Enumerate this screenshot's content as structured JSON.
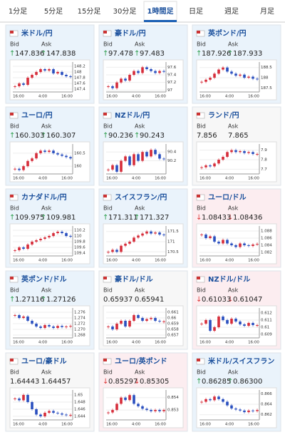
{
  "tabs": [
    "1分足",
    "5分足",
    "15分足",
    "30分足",
    "1時間足",
    "日足",
    "週足",
    "月足"
  ],
  "active_tab": 4,
  "bid_label": "Bid",
  "ask_label": "Ask",
  "xticks": [
    "16:00",
    "4:00",
    "16:00"
  ],
  "cells": [
    {
      "name": "米ドル/円",
      "bid": "147.836",
      "ask": "147.838",
      "direction": "up",
      "ylim": [
        147.3,
        148.3
      ],
      "yticks": [
        148.2,
        148,
        147.8,
        147.6,
        147.4
      ],
      "closes": [
        147.5,
        147.6,
        147.55,
        147.8,
        147.9,
        148.0,
        148.1,
        148.05,
        148.1,
        147.95,
        148.0,
        147.9,
        147.85,
        147.84
      ]
    },
    {
      "name": "豪ドル/円",
      "bid": "97.478",
      "ask": "97.483",
      "direction": "up",
      "ylim": [
        96.95,
        97.7
      ],
      "yticks": [
        97.6,
        97.4,
        97.2,
        97
      ],
      "closes": [
        97.1,
        97.05,
        97.2,
        97.3,
        97.25,
        97.4,
        97.5,
        97.45,
        97.6,
        97.55,
        97.5,
        97.45,
        97.5,
        97.48
      ]
    },
    {
      "name": "英ポンド/円",
      "bid": "187.926",
      "ask": "187.933",
      "direction": "up",
      "ylim": [
        187.3,
        188.7
      ],
      "yticks": [
        188.5,
        188,
        187.5
      ],
      "closes": [
        187.8,
        187.9,
        188.0,
        188.2,
        188.4,
        188.5,
        188.3,
        188.2,
        188.1,
        188.15,
        188.0,
        188.05,
        187.95,
        187.93
      ]
    },
    {
      "name": "ユーロ/円",
      "bid": "160.303",
      "ask": "160.307",
      "direction": "up",
      "ylim": [
        159.7,
        160.8
      ],
      "yticks": [
        160.5,
        160
      ],
      "closes": [
        159.9,
        159.85,
        160.0,
        160.2,
        160.3,
        160.5,
        160.6,
        160.55,
        160.6,
        160.5,
        160.45,
        160.4,
        160.35,
        160.3
      ]
    },
    {
      "name": "NZドル/円",
      "bid": "90.236",
      "ask": "90.243",
      "direction": "up",
      "ylim": [
        89.9,
        90.55
      ],
      "yticks": [
        90.4,
        90.2
      ],
      "closes": [
        90.0,
        90.1,
        89.95,
        90.2,
        90.3,
        90.1,
        90.35,
        90.2,
        90.4,
        90.3,
        90.45,
        90.35,
        90.25,
        90.24
      ]
    },
    {
      "name": "ランド/円",
      "bid": "7.856",
      "ask": "7.865",
      "direction": "flat",
      "ylim": [
        7.65,
        7.95
      ],
      "yticks": [
        7.9,
        7.8,
        7.7
      ],
      "closes": [
        7.72,
        7.74,
        7.73,
        7.76,
        7.8,
        7.83,
        7.88,
        7.9,
        7.88,
        7.89,
        7.87,
        7.88,
        7.86,
        7.86
      ]
    },
    {
      "name": "カナダドル/円",
      "bid": "109.975",
      "ask": "109.981",
      "direction": "up",
      "ylim": [
        109.3,
        110.3
      ],
      "yticks": [
        110.2,
        110,
        109.8,
        109.6,
        109.4
      ],
      "closes": [
        109.5,
        109.6,
        109.55,
        109.7,
        109.8,
        109.85,
        109.9,
        109.95,
        110.0,
        110.1,
        110.15,
        110.1,
        110.0,
        109.98
      ]
    },
    {
      "name": "スイスフラン/円",
      "bid": "171.311",
      "ask": "171.327",
      "direction": "up",
      "ylim": [
        170.3,
        171.7
      ],
      "yticks": [
        171.5,
        171,
        170.5
      ],
      "closes": [
        170.5,
        170.6,
        170.5,
        170.8,
        170.9,
        171.0,
        171.2,
        171.3,
        171.4,
        171.5,
        171.4,
        171.45,
        171.35,
        171.33
      ]
    },
    {
      "name": "ユーロ/ドル",
      "bid": "1.08433",
      "ask": "1.08436",
      "direction": "down",
      "ylim": [
        1.081,
        1.089
      ],
      "yticks": [
        1.088,
        1.086,
        1.084,
        1.082
      ],
      "closes": [
        1.087,
        1.086,
        1.0865,
        1.085,
        1.0845,
        1.0855,
        1.0845,
        1.084,
        1.0835,
        1.0845,
        1.084,
        1.0838,
        1.0842,
        1.0844
      ]
    },
    {
      "name": "英ポンド/ドル",
      "bid": "1.27116",
      "ask": "1.27126",
      "direction": "up",
      "ylim": [
        1.267,
        1.277
      ],
      "yticks": [
        1.276,
        1.274,
        1.272,
        {
          "value": 1.27,
          "label": "1.270"
        },
        1.268
      ],
      "closes": [
        1.275,
        1.274,
        1.2745,
        1.273,
        1.272,
        1.271,
        1.2705,
        1.2715,
        1.271,
        1.2705,
        1.2712,
        1.2708,
        1.271,
        1.2712
      ]
    },
    {
      "name": "豪ドル/ドル",
      "bid": "0.65937",
      "ask": "0.65941",
      "direction": "flat",
      "ylim": [
        0.6565,
        0.6615
      ],
      "yticks": [
        0.661,
        0.66,
        0.659,
        0.658,
        0.657
      ],
      "closes": [
        0.6585,
        0.658,
        0.659,
        0.6595,
        0.6585,
        0.6595,
        0.6605,
        0.66,
        0.6595,
        0.6598,
        0.66,
        0.6595,
        0.6594,
        0.6594
      ]
    },
    {
      "name": "NZドル/ドル",
      "bid": "0.61033",
      "ask": "0.61047",
      "direction": "down",
      "ylim": [
        0.6085,
        0.6125
      ],
      "yticks": [
        0.612,
        0.611,
        0.61,
        0.609
      ],
      "closes": [
        0.6105,
        0.611,
        0.6095,
        0.61,
        0.6115,
        0.611,
        0.6105,
        0.6112,
        0.6108,
        0.6104,
        0.6102,
        0.6106,
        0.6103,
        0.6103
      ]
    },
    {
      "name": "ユーロ/豪ドル",
      "bid": "1.64443",
      "ask": "1.64457",
      "direction": "flat",
      "ylim": [
        1.643,
        1.651
      ],
      "yticks": [
        1.65,
        1.648,
        1.646,
        1.644
      ],
      "closes": [
        1.649,
        1.6485,
        1.65,
        1.648,
        1.646,
        1.6445,
        1.644,
        1.645,
        1.6455,
        1.645,
        1.6448,
        1.6445,
        1.6444,
        1.6444
      ]
    },
    {
      "name": "ユーロ/英ポンド",
      "bid": "0.85297",
      "ask": "0.85305",
      "direction": "down",
      "ylim": [
        0.8522,
        0.8545
      ],
      "yticks": [
        0.854,
        0.853
      ],
      "closes": [
        0.8528,
        0.853,
        0.8535,
        0.854,
        0.8538,
        0.8542,
        0.8535,
        0.8533,
        0.8531,
        0.853,
        0.8529,
        0.853,
        0.8529,
        0.853
      ]
    },
    {
      "name": "米ドル/スイスフラン",
      "bid": "0.86285",
      "ask": "0.86300",
      "direction": "up",
      "ylim": [
        0.861,
        0.8665
      ],
      "yticks": [
        0.866,
        0.864,
        0.862
      ],
      "closes": [
        0.8645,
        0.865,
        0.8648,
        0.8655,
        0.865,
        0.8645,
        0.8638,
        0.8632,
        0.863,
        0.8628,
        0.8625,
        0.8628,
        0.8627,
        0.8629
      ]
    }
  ]
}
